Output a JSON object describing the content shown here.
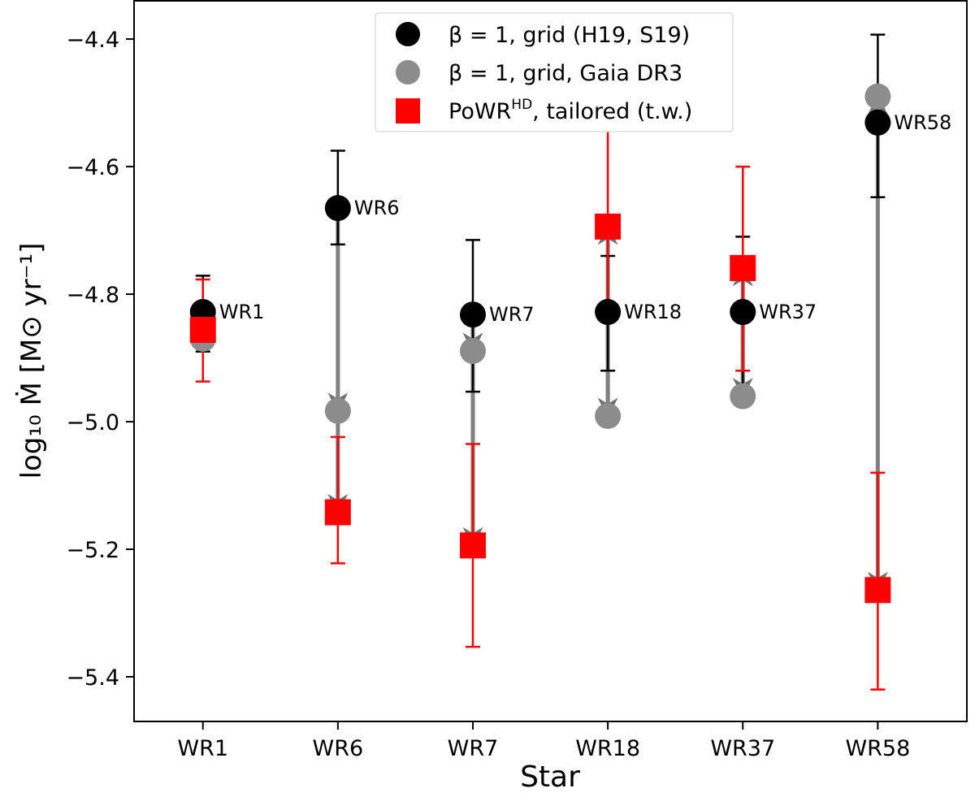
{
  "chart_data": {
    "type": "scatter",
    "xlabel": "Star",
    "ylabel": "log₁₀ Ṁ [M⊙ yr⁻¹]",
    "categories": [
      "WR1",
      "WR6",
      "WR7",
      "WR18",
      "WR37",
      "WR58"
    ],
    "ylim": [
      -5.47,
      -4.34
    ],
    "yticks": [
      -4.4,
      -4.6,
      -4.8,
      -5.0,
      -5.2,
      -5.4
    ],
    "ytick_labels": [
      "−4.4",
      "−4.6",
      "−4.8",
      "−5.0",
      "−5.2",
      "−5.4"
    ],
    "grid": false,
    "legend_placement": "top-center",
    "series": [
      {
        "name": "β = 1, grid (H19, S19)",
        "marker": "circle",
        "color": "#000000",
        "values": [
          -4.828,
          -4.665,
          -4.832,
          -4.828,
          -4.828,
          -4.531
        ],
        "err_low": [
          -4.89,
          -4.722,
          -4.953,
          -4.92,
          -4.95,
          -4.648
        ],
        "err_high": [
          -4.771,
          -4.575,
          -4.715,
          -4.74,
          -4.71,
          -4.393
        ]
      },
      {
        "name": "β = 1, grid, Gaia DR3",
        "marker": "circle",
        "color": "#8c8c8c",
        "values": [
          -4.87,
          -4.983,
          -4.889,
          -4.991,
          -4.96,
          -4.49
        ]
      },
      {
        "name": "PoWR",
        "name_sup": "HD",
        "name_suffix": ", tailored (t.w.)",
        "marker": "square",
        "color": "#ff0000",
        "values": [
          -4.856,
          -5.142,
          -5.194,
          -4.694,
          -4.759,
          -5.264
        ],
        "err_low": [
          -4.937,
          -5.222,
          -5.353,
          -4.82,
          -4.92,
          -5.42
        ],
        "err_high": [
          -4.777,
          -5.024,
          -5.035,
          -4.534,
          -4.6,
          -5.08
        ]
      }
    ],
    "point_labels": [
      "WR1",
      "WR6",
      "WR7",
      "WR18",
      "WR37",
      "WR58"
    ]
  }
}
